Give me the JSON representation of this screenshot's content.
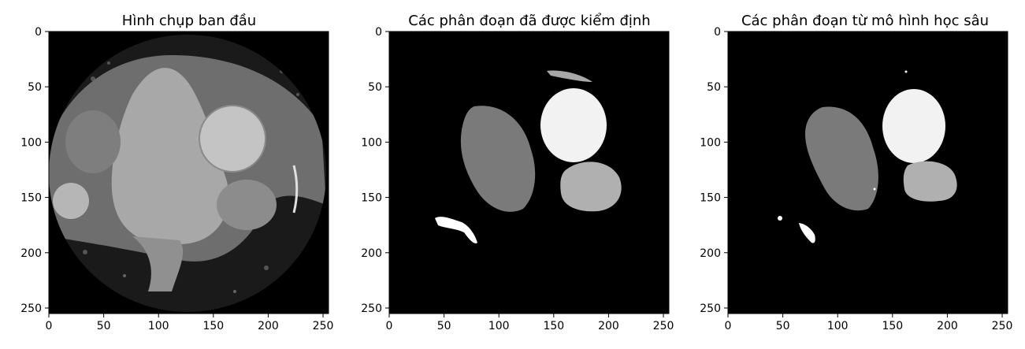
{
  "panels": [
    {
      "title": "Hình chụp ban đầu",
      "image": "ct-scan-original",
      "x_ticks": [
        "0",
        "50",
        "100",
        "150",
        "200",
        "250"
      ],
      "y_ticks": [
        "0",
        "50",
        "100",
        "150",
        "200",
        "250"
      ]
    },
    {
      "title": "Các phân đoạn đã được kiểm định",
      "image": "segmentation-ground-truth",
      "x_ticks": [
        "0",
        "50",
        "100",
        "150",
        "200",
        "250"
      ],
      "y_ticks": [
        "0",
        "50",
        "100",
        "150",
        "200",
        "250"
      ]
    },
    {
      "title": "Các phân đoạn từ mô hình học sâu",
      "image": "segmentation-model-prediction",
      "x_ticks": [
        "0",
        "50",
        "100",
        "150",
        "200",
        "250"
      ],
      "y_ticks": [
        "0",
        "50",
        "100",
        "150",
        "200",
        "250"
      ]
    }
  ],
  "axis_range": [
    0,
    255
  ],
  "colors": {
    "background": "#000000",
    "segment_dark": "#7a7a7a",
    "segment_light": "#b0b0b0",
    "segment_bright": "#f2f2f2",
    "segment_white": "#ffffff"
  }
}
